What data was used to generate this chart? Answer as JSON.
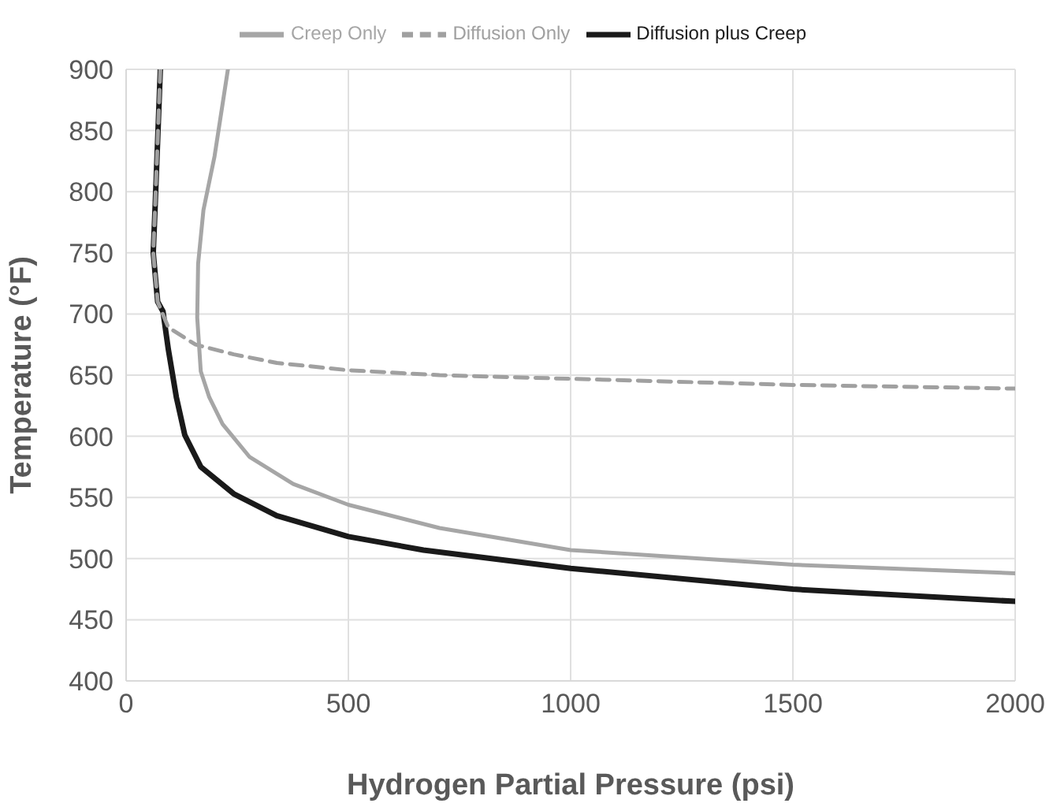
{
  "chart_data": {
    "type": "line",
    "xlabel": "Hydrogen Partial Pressure (psi)",
    "ylabel": "Temperature (°F)",
    "xlim": [
      0,
      2000
    ],
    "xticks": [
      0,
      500,
      1000,
      1500,
      2000
    ],
    "ylim": [
      400,
      900
    ],
    "yticks": [
      400,
      450,
      500,
      550,
      600,
      650,
      700,
      750,
      800,
      850,
      900
    ],
    "grid": true,
    "legend": "top",
    "marker": "none",
    "series": [
      {
        "name": "Diffusion plus Creep",
        "color": "#1a1a1a",
        "line_style": "solid",
        "x": [
          77,
          65,
          61,
          71,
          83,
          95,
          113,
          132,
          168,
          242,
          339,
          500,
          669,
          1000,
          1500,
          2000
        ],
        "values": [
          900,
          785,
          750,
          710,
          702,
          671,
          632,
          601,
          575,
          553,
          535,
          518,
          507,
          492,
          475,
          465
        ]
      },
      {
        "name": "Diffusion Only",
        "color": "#a0a0a0",
        "line_style": "dashed",
        "x": [
          77,
          65,
          61,
          71,
          95,
          156,
          242,
          339,
          500,
          705,
          1000,
          1500,
          2000
        ],
        "values": [
          900,
          785,
          750,
          710,
          689,
          675,
          667,
          660,
          654,
          650,
          647,
          642,
          639
        ]
      },
      {
        "name": "Creep Only",
        "color": "#a6a6a6",
        "line_style": "solid",
        "x": [
          229,
          199,
          174,
          162,
          160,
          168,
          187,
          217,
          278,
          376,
          500,
          705,
          1000,
          1500,
          2000
        ],
        "values": [
          900,
          829,
          785,
          741,
          697,
          653,
          632,
          610,
          583,
          561,
          544,
          525,
          507,
          495,
          488
        ]
      }
    ]
  }
}
